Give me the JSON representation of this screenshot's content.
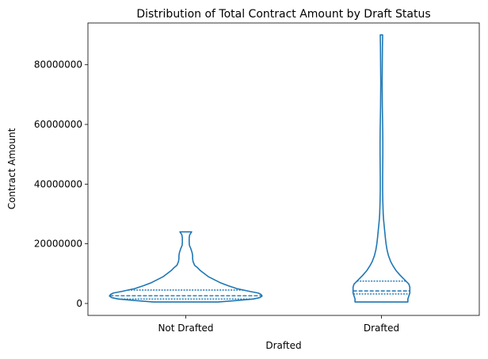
{
  "chart_data": {
    "type": "violin",
    "title": "Distribution of Total Contract Amount by Draft Status",
    "xlabel": "Drafted",
    "ylabel": "Contract Amount",
    "categories": [
      "Not Drafted",
      "Drafted"
    ],
    "ylim": [
      -4000000,
      94000000
    ],
    "yticks": [
      0,
      20000000,
      40000000,
      60000000,
      80000000
    ],
    "ytick_labels": [
      "0",
      "20000000",
      "40000000",
      "60000000",
      "80000000"
    ],
    "grid": false,
    "color": "#1f77b4",
    "violins": [
      {
        "category": "Not Drafted",
        "quartiles": [
          1500000,
          2600000,
          4500000
        ],
        "profile": [
          [
            500000,
            0.33
          ],
          [
            1000000,
            0.52
          ],
          [
            1500000,
            0.69
          ],
          [
            2000000,
            0.76
          ],
          [
            2500000,
            0.78
          ],
          [
            3000000,
            0.77
          ],
          [
            3500000,
            0.74
          ],
          [
            4000000,
            0.66
          ],
          [
            5000000,
            0.52
          ],
          [
            6000000,
            0.43
          ],
          [
            7000000,
            0.35
          ],
          [
            8000000,
            0.29
          ],
          [
            9000000,
            0.23
          ],
          [
            10000000,
            0.19
          ],
          [
            11000000,
            0.15
          ],
          [
            12000000,
            0.12
          ],
          [
            12800000,
            0.09
          ],
          [
            14000000,
            0.075
          ],
          [
            15000000,
            0.07
          ],
          [
            16000000,
            0.07
          ],
          [
            17000000,
            0.065
          ],
          [
            18500000,
            0.05
          ],
          [
            19500000,
            0.037
          ],
          [
            20500000,
            0.035
          ],
          [
            22000000,
            0.035
          ],
          [
            23000000,
            0.04
          ],
          [
            24000000,
            0.06
          ]
        ]
      },
      {
        "category": "Drafted",
        "quartiles": [
          3200000,
          4200000,
          7500000
        ],
        "profile": [
          [
            500000,
            0.27
          ],
          [
            1500000,
            0.27
          ],
          [
            2500000,
            0.28
          ],
          [
            3500000,
            0.29
          ],
          [
            4500000,
            0.29
          ],
          [
            5500000,
            0.29
          ],
          [
            6500000,
            0.28
          ],
          [
            7500000,
            0.25
          ],
          [
            8500000,
            0.22
          ],
          [
            9500000,
            0.19
          ],
          [
            11000000,
            0.15
          ],
          [
            12500000,
            0.12
          ],
          [
            14000000,
            0.095
          ],
          [
            16000000,
            0.072
          ],
          [
            18000000,
            0.057
          ],
          [
            20000000,
            0.047
          ],
          [
            22000000,
            0.04
          ],
          [
            24000000,
            0.034
          ],
          [
            26000000,
            0.028
          ],
          [
            28000000,
            0.022
          ],
          [
            30000000,
            0.018
          ],
          [
            34000000,
            0.014
          ],
          [
            38000000,
            0.012
          ],
          [
            42000000,
            0.012
          ],
          [
            46000000,
            0.013
          ],
          [
            50000000,
            0.014
          ],
          [
            54000000,
            0.014
          ],
          [
            58000000,
            0.013
          ],
          [
            62000000,
            0.011
          ],
          [
            66000000,
            0.009
          ],
          [
            70000000,
            0.008
          ],
          [
            74000000,
            0.007
          ],
          [
            78000000,
            0.008
          ],
          [
            82000000,
            0.009
          ],
          [
            86000000,
            0.01
          ],
          [
            90000000,
            0.012
          ]
        ]
      }
    ]
  }
}
